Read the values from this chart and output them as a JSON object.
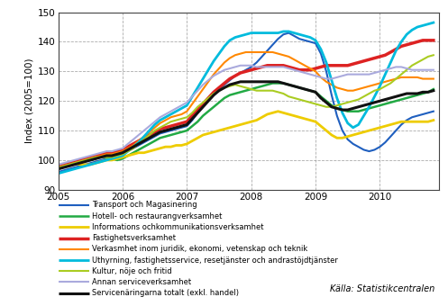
{
  "title": "",
  "ylabel": "Index (2005=100)",
  "ylim": [
    90,
    150
  ],
  "yticks": [
    90,
    100,
    110,
    120,
    130,
    140,
    150
  ],
  "xlim": [
    2005.0,
    2010.92
  ],
  "xticks": [
    2005,
    2006,
    2007,
    2008,
    2009,
    2010
  ],
  "background_color": "#ffffff",
  "grid_color": "#888888",
  "source_text": "Källa: Statistikcentralen",
  "legend_entries": [
    "Transport och Magasinering",
    "Hotell- och restaurangverksamhet",
    "Informations ochkommunikationsverksamhet",
    "Fastighetsverksamhet",
    "Verkasmhet inom juridik, ekonomi, vetenskap och teknik",
    "Uthyrning, fastighetsservice, resetjänster och andrastöjdtjänster",
    "Kultur, nöje och fritid",
    "Annan serviceverksamhet",
    "Servicenäringarna totalt (exkl. handel)"
  ],
  "colors": [
    "#1f5fbf",
    "#22aa44",
    "#eecc00",
    "#dd2222",
    "#ff8800",
    "#00bbdd",
    "#aacc22",
    "#aaaadd",
    "#111111"
  ],
  "linewidths": [
    1.5,
    1.8,
    2.0,
    2.5,
    1.5,
    2.0,
    1.5,
    1.5,
    2.2
  ],
  "x": [
    2005.0,
    2005.083,
    2005.167,
    2005.25,
    2005.333,
    2005.417,
    2005.5,
    2005.583,
    2005.667,
    2005.75,
    2005.833,
    2005.917,
    2006.0,
    2006.083,
    2006.167,
    2006.25,
    2006.333,
    2006.417,
    2006.5,
    2006.583,
    2006.667,
    2006.75,
    2006.833,
    2006.917,
    2007.0,
    2007.083,
    2007.167,
    2007.25,
    2007.333,
    2007.417,
    2007.5,
    2007.583,
    2007.667,
    2007.75,
    2007.833,
    2007.917,
    2008.0,
    2008.083,
    2008.167,
    2008.25,
    2008.333,
    2008.417,
    2008.5,
    2008.583,
    2008.667,
    2008.75,
    2008.833,
    2008.917,
    2009.0,
    2009.083,
    2009.167,
    2009.25,
    2009.333,
    2009.417,
    2009.5,
    2009.583,
    2009.667,
    2009.75,
    2009.833,
    2009.917,
    2010.0,
    2010.083,
    2010.167,
    2010.25,
    2010.333,
    2010.417,
    2010.5,
    2010.583,
    2010.667,
    2010.75,
    2010.833
  ],
  "series": {
    "transport": [
      96.0,
      96.5,
      97.0,
      97.5,
      98.0,
      98.5,
      99.0,
      99.5,
      100.0,
      100.5,
      101.0,
      101.5,
      102.0,
      103.0,
      104.0,
      105.0,
      106.0,
      107.0,
      108.0,
      109.0,
      109.5,
      110.0,
      110.5,
      111.0,
      111.5,
      113.5,
      116.0,
      118.5,
      120.5,
      122.5,
      124.0,
      125.5,
      127.0,
      128.5,
      129.5,
      130.5,
      131.5,
      133.0,
      135.0,
      137.0,
      139.0,
      141.0,
      142.5,
      143.0,
      142.0,
      141.0,
      140.5,
      140.0,
      139.5,
      136.0,
      130.0,
      122.0,
      115.0,
      110.0,
      107.0,
      105.5,
      104.5,
      103.5,
      103.0,
      103.5,
      104.5,
      106.0,
      108.0,
      110.0,
      112.0,
      113.5,
      114.5,
      115.0,
      115.5,
      116.0,
      116.5
    ],
    "hotell": [
      97.5,
      98.0,
      98.5,
      99.0,
      99.5,
      100.0,
      100.0,
      100.5,
      101.0,
      101.0,
      100.5,
      100.0,
      100.5,
      101.5,
      102.5,
      103.5,
      104.5,
      105.5,
      106.5,
      107.5,
      108.0,
      108.5,
      109.0,
      109.5,
      110.0,
      111.5,
      113.0,
      115.0,
      116.5,
      118.0,
      119.5,
      121.0,
      122.0,
      122.5,
      123.0,
      123.5,
      124.0,
      124.5,
      125.0,
      125.5,
      126.0,
      126.0,
      126.0,
      125.5,
      125.0,
      124.5,
      124.0,
      123.5,
      123.0,
      121.5,
      120.0,
      118.5,
      117.5,
      117.0,
      116.5,
      116.5,
      116.5,
      117.0,
      117.5,
      118.0,
      118.5,
      119.0,
      119.5,
      120.0,
      120.5,
      121.0,
      121.5,
      122.0,
      122.5,
      123.0,
      124.0
    ],
    "ikt": [
      98.0,
      98.5,
      99.0,
      99.0,
      98.5,
      98.5,
      98.5,
      99.0,
      99.5,
      100.0,
      100.0,
      100.5,
      101.0,
      101.5,
      102.0,
      102.5,
      102.5,
      103.0,
      103.5,
      104.0,
      104.5,
      104.5,
      105.0,
      105.0,
      105.5,
      106.5,
      107.5,
      108.5,
      109.0,
      109.5,
      110.0,
      110.5,
      111.0,
      111.5,
      112.0,
      112.5,
      113.0,
      113.5,
      114.5,
      115.5,
      116.0,
      116.5,
      116.0,
      115.5,
      115.0,
      114.5,
      114.0,
      113.5,
      113.0,
      111.5,
      110.0,
      108.5,
      107.5,
      107.5,
      108.0,
      108.5,
      109.0,
      109.5,
      110.0,
      110.5,
      111.0,
      111.5,
      112.0,
      112.5,
      113.0,
      113.0,
      113.0,
      113.0,
      113.0,
      113.0,
      113.5
    ],
    "fastighets": [
      98.0,
      98.5,
      99.0,
      99.5,
      100.0,
      100.5,
      101.0,
      101.5,
      102.0,
      102.5,
      102.5,
      103.0,
      103.5,
      104.5,
      105.5,
      106.5,
      107.5,
      108.5,
      109.5,
      110.5,
      111.0,
      111.5,
      112.0,
      112.5,
      113.0,
      115.0,
      117.0,
      119.0,
      121.0,
      123.0,
      124.5,
      126.0,
      127.5,
      128.5,
      129.5,
      130.0,
      130.5,
      131.0,
      131.5,
      132.0,
      132.0,
      132.0,
      132.0,
      131.5,
      131.0,
      130.5,
      130.5,
      130.5,
      131.0,
      131.5,
      132.0,
      132.0,
      132.0,
      132.0,
      132.0,
      132.5,
      133.0,
      133.5,
      134.0,
      134.5,
      135.0,
      135.5,
      136.5,
      137.5,
      138.5,
      139.0,
      139.5,
      140.0,
      140.5,
      140.5,
      140.5
    ],
    "juridik": [
      97.5,
      98.0,
      98.5,
      99.0,
      99.5,
      100.0,
      100.5,
      101.0,
      101.5,
      102.0,
      102.0,
      102.5,
      103.0,
      104.0,
      105.0,
      106.5,
      108.0,
      109.5,
      111.0,
      112.5,
      113.5,
      114.5,
      115.0,
      115.5,
      116.5,
      119.0,
      121.5,
      124.0,
      126.5,
      129.0,
      131.0,
      133.0,
      134.5,
      135.5,
      136.0,
      136.5,
      136.5,
      136.5,
      136.5,
      136.5,
      136.5,
      136.0,
      135.5,
      135.0,
      134.0,
      133.0,
      132.0,
      131.0,
      130.0,
      128.0,
      126.5,
      125.5,
      124.5,
      124.0,
      123.5,
      123.5,
      124.0,
      124.5,
      125.0,
      125.5,
      126.0,
      126.5,
      127.0,
      127.5,
      128.0,
      128.0,
      128.0,
      128.0,
      127.5,
      127.5,
      127.5
    ],
    "uthyrning": [
      95.5,
      96.0,
      96.5,
      97.0,
      97.5,
      98.0,
      98.5,
      99.0,
      99.5,
      100.0,
      100.5,
      101.0,
      101.5,
      103.0,
      104.5,
      106.0,
      108.0,
      110.0,
      112.0,
      113.5,
      114.5,
      115.5,
      116.5,
      117.5,
      118.5,
      121.5,
      124.5,
      127.5,
      130.5,
      133.5,
      136.0,
      138.5,
      140.5,
      141.5,
      142.0,
      142.5,
      143.0,
      143.0,
      143.0,
      143.0,
      143.0,
      143.0,
      143.5,
      143.5,
      143.0,
      142.5,
      142.0,
      141.5,
      140.5,
      137.5,
      133.0,
      127.0,
      121.0,
      116.0,
      112.5,
      111.0,
      112.0,
      115.0,
      118.0,
      121.5,
      125.0,
      129.0,
      133.0,
      137.0,
      140.0,
      142.5,
      144.0,
      145.0,
      145.5,
      146.0,
      146.5
    ],
    "kultur": [
      97.5,
      98.0,
      98.5,
      99.0,
      99.5,
      100.0,
      100.5,
      101.0,
      101.0,
      101.0,
      101.0,
      101.5,
      102.0,
      103.0,
      104.0,
      105.5,
      107.0,
      108.5,
      110.0,
      111.0,
      112.0,
      113.0,
      113.5,
      114.0,
      114.5,
      116.0,
      118.0,
      119.5,
      121.0,
      122.5,
      123.5,
      124.5,
      125.0,
      125.5,
      125.0,
      124.5,
      124.0,
      123.5,
      123.5,
      123.5,
      123.5,
      123.0,
      122.5,
      121.5,
      121.0,
      120.5,
      120.0,
      119.5,
      119.0,
      118.5,
      118.0,
      118.0,
      118.5,
      119.0,
      119.5,
      120.0,
      120.5,
      121.5,
      122.5,
      123.5,
      124.0,
      125.0,
      126.0,
      127.5,
      129.0,
      130.5,
      132.0,
      133.0,
      134.0,
      135.0,
      135.5
    ],
    "annan": [
      98.5,
      99.0,
      99.5,
      100.0,
      100.5,
      101.0,
      101.5,
      102.0,
      102.5,
      103.0,
      103.0,
      103.5,
      104.0,
      105.5,
      107.0,
      108.5,
      110.0,
      111.5,
      113.0,
      114.5,
      115.5,
      116.5,
      117.5,
      118.5,
      119.5,
      121.5,
      123.5,
      125.5,
      127.0,
      128.5,
      129.5,
      130.5,
      131.0,
      131.5,
      132.0,
      132.0,
      132.0,
      131.5,
      131.5,
      131.5,
      131.5,
      131.5,
      131.5,
      131.0,
      130.5,
      130.0,
      129.5,
      129.0,
      128.5,
      128.0,
      127.5,
      127.5,
      128.0,
      128.5,
      129.0,
      129.0,
      129.0,
      129.0,
      129.0,
      129.5,
      130.0,
      130.5,
      131.0,
      131.5,
      131.5,
      131.0,
      130.5,
      130.5,
      130.5,
      130.5,
      130.5
    ],
    "totalt": [
      97.0,
      97.5,
      98.0,
      98.5,
      99.0,
      99.5,
      100.0,
      100.5,
      101.0,
      101.5,
      101.5,
      102.0,
      102.5,
      103.5,
      104.5,
      105.5,
      106.5,
      107.5,
      108.5,
      109.5,
      110.0,
      110.5,
      111.0,
      111.5,
      112.0,
      114.0,
      116.0,
      118.0,
      120.0,
      122.0,
      123.5,
      124.5,
      125.5,
      126.0,
      126.5,
      126.5,
      126.5,
      126.5,
      126.5,
      126.5,
      126.5,
      126.5,
      126.0,
      125.5,
      125.0,
      124.5,
      124.0,
      123.5,
      123.0,
      121.0,
      119.5,
      118.0,
      117.5,
      117.0,
      117.0,
      117.5,
      118.0,
      118.5,
      119.0,
      119.5,
      120.0,
      120.5,
      121.0,
      121.5,
      122.0,
      122.5,
      122.5,
      122.5,
      123.0,
      123.0,
      123.5
    ]
  }
}
